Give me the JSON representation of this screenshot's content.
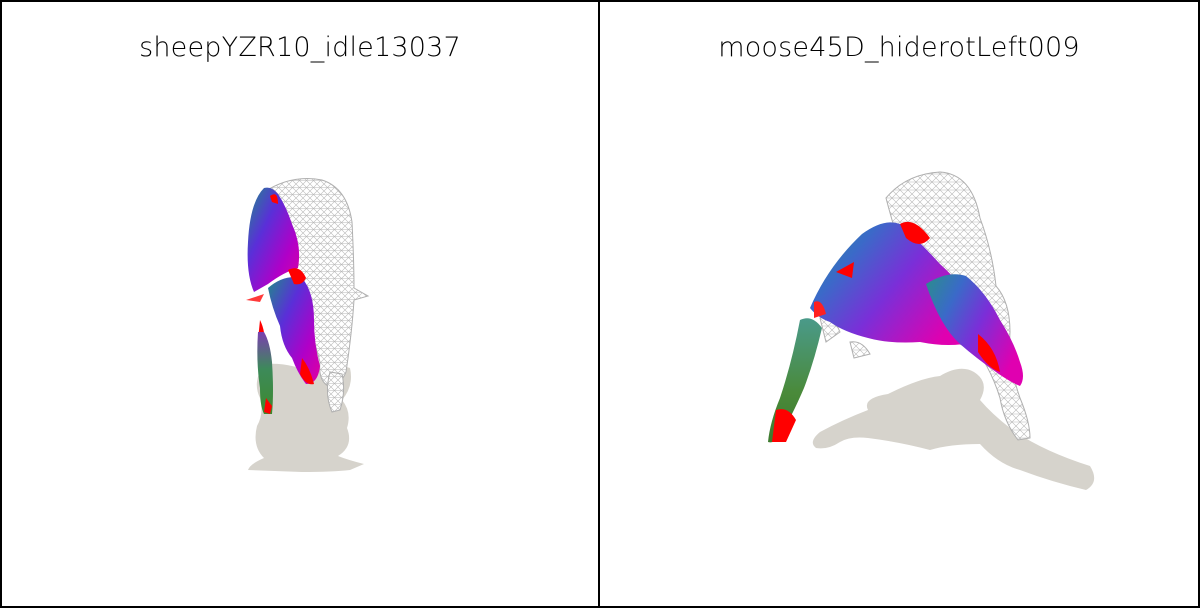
{
  "panels": [
    {
      "title": "sheepYZR10_idle13037",
      "subject": "sheep"
    },
    {
      "title": "moose45D_hiderotLeft009",
      "subject": "moose"
    }
  ],
  "colors": {
    "border": "#000000",
    "shadow": "#d6d3cc",
    "wire": "#bdbdbd",
    "red": "#ff0000",
    "magenta": "#d000d0",
    "violet": "#6a2bd6",
    "teal": "#2a7f8a",
    "green": "#3d8a2e"
  }
}
